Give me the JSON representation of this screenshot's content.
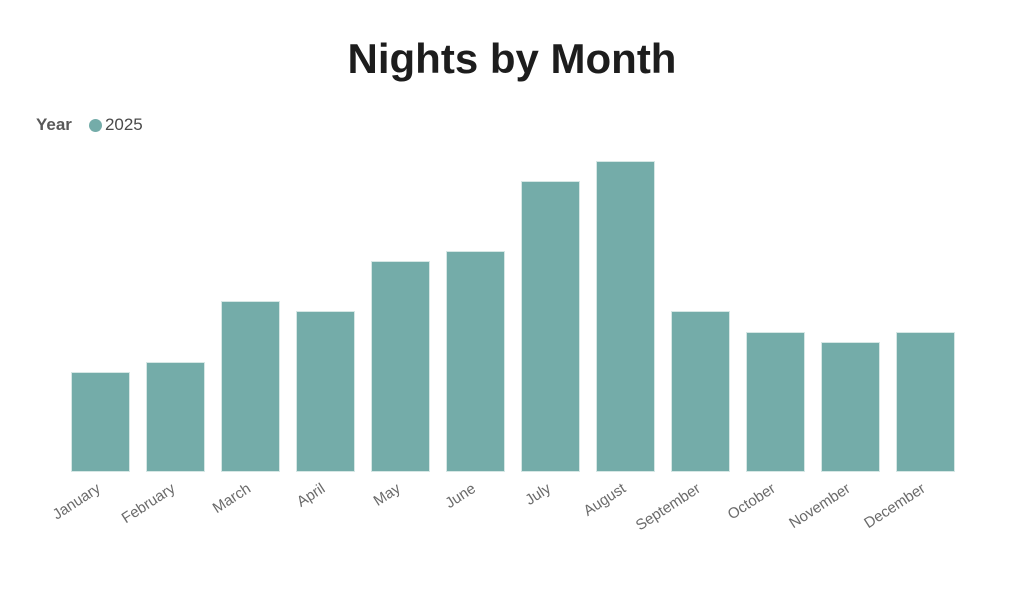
{
  "title": "Nights by Month",
  "legend": {
    "title": "Year",
    "series_label": "2025",
    "marker_color": "#74ACA9"
  },
  "chart_data": {
    "type": "bar",
    "title": "Nights by Month",
    "categories": [
      "January",
      "February",
      "March",
      "April",
      "May",
      "June",
      "July",
      "August",
      "September",
      "October",
      "November",
      "December"
    ],
    "series": [
      {
        "name": "2025",
        "values": [
          10,
          11,
          17,
          16,
          21,
          22,
          29,
          31,
          16,
          14,
          13,
          14
        ]
      }
    ],
    "xlabel": "",
    "ylabel": "",
    "ylim": [
      0,
      32
    ],
    "grid": false,
    "y_axis_visible": false,
    "legend_position": "top-left",
    "bar_color": "#74ACA9"
  },
  "colors": {
    "background": "#FFFFFF",
    "bar": "#74ACA9",
    "bar_border": "#D6E7E5",
    "title_text": "#1D1D1D",
    "legend_title": "#595959",
    "legend_value": "#4A4A4A",
    "axis_label": "#6A6A6A"
  }
}
